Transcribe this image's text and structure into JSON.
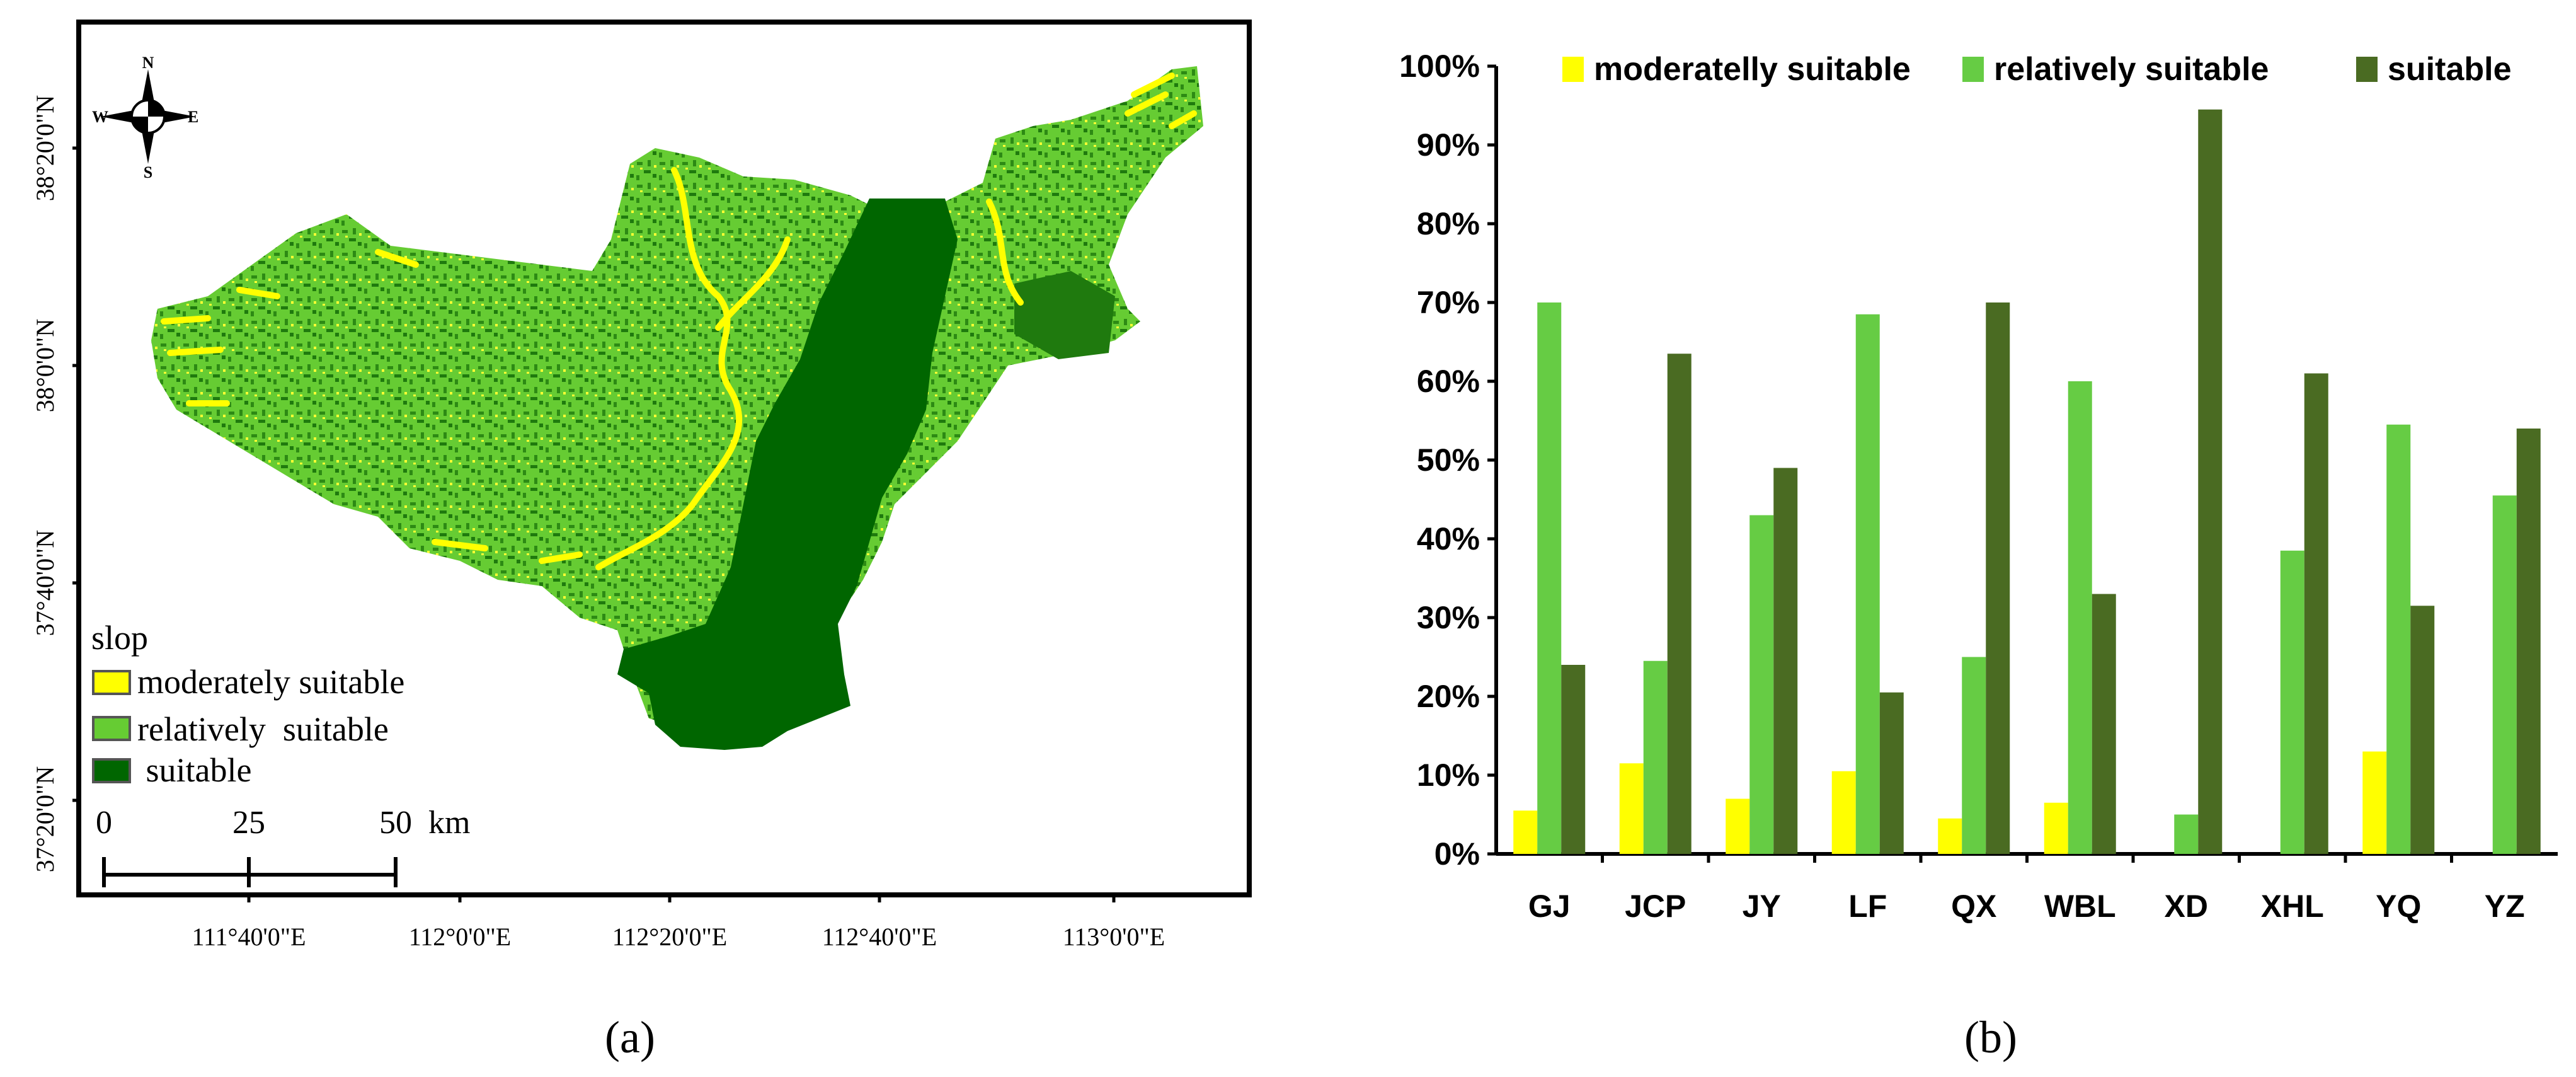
{
  "map": {
    "lat_labels": [
      "38°20'0\"N",
      "38°0'0\"N",
      "37°40'0\"N",
      "37°20'0\"N"
    ],
    "lon_labels": [
      "111°40'0\"E",
      "112°0'0\"E",
      "112°20'0\"E",
      "112°40'0\"E",
      "113°0'0\"E"
    ],
    "compass": {
      "n": "N",
      "s": "S",
      "e": "E",
      "w": "W"
    },
    "legend": {
      "title": "slop",
      "items": [
        {
          "label": "moderately suitable",
          "color": "#ffff00"
        },
        {
          "label": "relatively  suitable",
          "color": "#66cc33"
        },
        {
          "label": " suitable",
          "color": "#006600"
        }
      ]
    },
    "scale_bar": {
      "ticks": [
        "0",
        "25",
        "50"
      ],
      "unit": "km"
    },
    "caption": "(a)"
  },
  "chart_data": {
    "type": "bar",
    "categories": [
      "GJ",
      "JCP",
      "JY",
      "LF",
      "QX",
      "WBL",
      "XD",
      "XHL",
      "YQ",
      "YZ"
    ],
    "series": [
      {
        "name": "moderatelly suitable",
        "color": "#ffff00",
        "values": [
          5.5,
          11.5,
          7,
          10.5,
          4.5,
          6.5,
          0,
          0,
          13,
          0
        ]
      },
      {
        "name": "relatively suitable",
        "color": "#66cc44",
        "values": [
          70,
          24.5,
          43,
          68.5,
          25,
          60,
          5,
          38.5,
          54.5,
          45.5
        ]
      },
      {
        "name": "suitable",
        "color": "#4a6b22",
        "values": [
          24,
          63.5,
          49,
          20.5,
          70,
          33,
          94.5,
          61,
          31.5,
          54
        ]
      }
    ],
    "yticks": [
      "0%",
      "10%",
      "20%",
      "30%",
      "40%",
      "50%",
      "60%",
      "70%",
      "80%",
      "90%",
      "100%"
    ],
    "ylim": [
      0,
      100
    ],
    "legend_position": "top",
    "grid": false,
    "caption": "(b)"
  }
}
